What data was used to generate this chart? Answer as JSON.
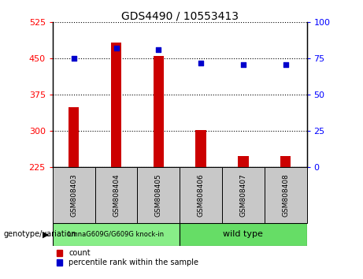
{
  "title": "GDS4490 / 10553413",
  "samples": [
    "GSM808403",
    "GSM808404",
    "GSM808405",
    "GSM808406",
    "GSM808407",
    "GSM808408"
  ],
  "counts": [
    350,
    483,
    455,
    302,
    248,
    248
  ],
  "percentile_ranks": [
    75,
    82,
    81,
    72,
    71,
    71
  ],
  "y_min": 225,
  "y_max": 525,
  "y_ticks": [
    225,
    300,
    375,
    450,
    525
  ],
  "y_right_ticks": [
    0,
    25,
    50,
    75,
    100
  ],
  "bar_color": "#cc0000",
  "dot_color": "#0000cc",
  "background_label": "#c8c8c8",
  "group1_label": "LmnaG609G/G609G knock-in",
  "group2_label": "wild type",
  "group1_color": "#88ee88",
  "group2_color": "#66dd66",
  "group1_indices": [
    0,
    1,
    2
  ],
  "group2_indices": [
    3,
    4,
    5
  ],
  "genotype_label": "genotype/variation",
  "legend_count_label": "count",
  "legend_percentile_label": "percentile rank within the sample",
  "bar_width": 0.25
}
